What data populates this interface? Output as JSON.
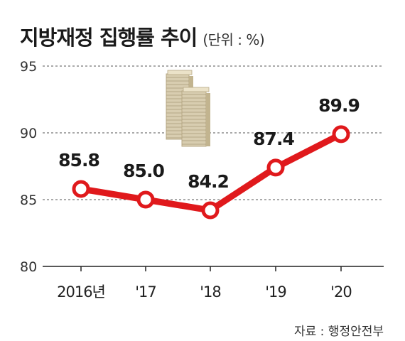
{
  "title": "지방재정 집행률 추이",
  "unit": "(단위 : %)",
  "source": "자료 : 행정안전부",
  "colors": {
    "line": "#e0191c",
    "marker_fill": "#ffffff",
    "grid": "#555555",
    "baseline": "#222222"
  },
  "decoration": "money-stacks-icon",
  "chart_data": {
    "type": "line",
    "categories": [
      "2016년",
      "'17",
      "'18",
      "'19",
      "'20"
    ],
    "values": [
      85.8,
      85.0,
      84.2,
      87.4,
      89.9
    ],
    "data_labels": [
      "85.8",
      "85.0",
      "84.2",
      "87.4",
      "89.9"
    ],
    "y_ticks": [
      "95",
      "90",
      "85",
      "80"
    ],
    "ylim": [
      80,
      95
    ],
    "grid": true,
    "title": "지방재정 집행률 추이",
    "xlabel": "",
    "ylabel": ""
  }
}
